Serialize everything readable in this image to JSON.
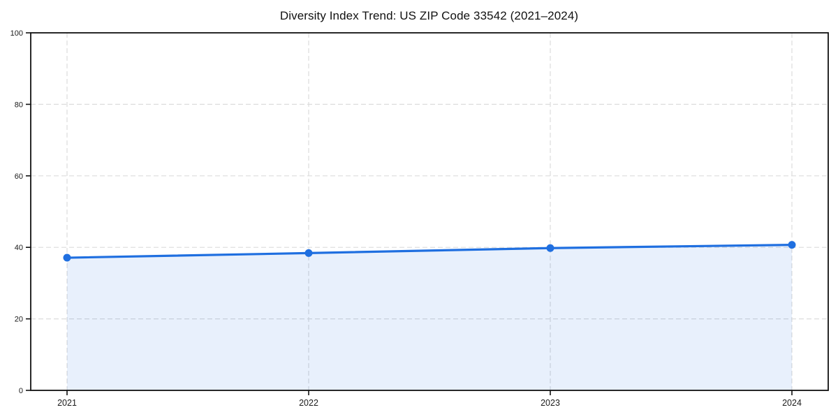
{
  "chart_data": {
    "type": "area",
    "title": "Diversity Index Trend: US ZIP Code 33542 (2021–2024)",
    "categories": [
      "2021",
      "2022",
      "2023",
      "2024"
    ],
    "series": [
      {
        "name": "Diversity Index",
        "values": [
          37.1,
          38.4,
          39.8,
          40.7
        ]
      }
    ],
    "xlabel": "",
    "ylabel": "",
    "ylim": [
      0,
      100
    ],
    "yticks": [
      0,
      20,
      40,
      60,
      80,
      100
    ],
    "grid": "dashed horizontal and vertical at ticks",
    "legend_position": "none",
    "colors": {
      "line": "#1f6fe0",
      "marker": "#1f6fe0",
      "fill": "rgba(31,111,224,0.10)",
      "grid": "#dcdcdc",
      "axis": "#111111",
      "tick_label": "#1a1a1a",
      "title": "#111111",
      "background": "#ffffff"
    }
  }
}
